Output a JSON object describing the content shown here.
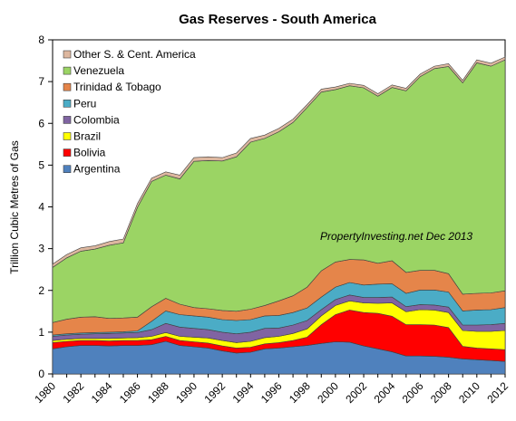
{
  "chart_data": {
    "type": "area",
    "stacked": true,
    "title": "Gas Reserves - South America",
    "ylabel": "Trillion Cubic Metres of Gas",
    "xlabel": "",
    "annotation": "PropertyInvesting.net  Dec 2013",
    "ylim": [
      0,
      8
    ],
    "yticks": [
      "0",
      "1",
      "2",
      "3",
      "4",
      "5",
      "6",
      "7",
      "8"
    ],
    "x": [
      1980,
      1981,
      1982,
      1983,
      1984,
      1985,
      1986,
      1987,
      1988,
      1989,
      1990,
      1991,
      1992,
      1993,
      1994,
      1995,
      1996,
      1997,
      1998,
      1999,
      2000,
      2001,
      2002,
      2003,
      2004,
      2005,
      2006,
      2007,
      2008,
      2009,
      2010,
      2011,
      2012
    ],
    "xticks": [
      "1980",
      "1982",
      "1984",
      "1986",
      "1988",
      "1990",
      "1992",
      "1994",
      "1996",
      "1998",
      "2000",
      "2002",
      "2004",
      "2006",
      "2008",
      "2010",
      "2012"
    ],
    "legend_position": "top-left",
    "series": [
      {
        "name": "Argentina",
        "color": "#4f81bd",
        "values": [
          0.6,
          0.65,
          0.68,
          0.68,
          0.67,
          0.68,
          0.68,
          0.7,
          0.78,
          0.68,
          0.65,
          0.62,
          0.55,
          0.5,
          0.52,
          0.6,
          0.62,
          0.65,
          0.68,
          0.73,
          0.77,
          0.76,
          0.67,
          0.6,
          0.53,
          0.43,
          0.43,
          0.42,
          0.4,
          0.36,
          0.34,
          0.32,
          0.3
        ]
      },
      {
        "name": "Bolivia",
        "color": "#ff0000",
        "values": [
          0.15,
          0.13,
          0.12,
          0.12,
          0.12,
          0.12,
          0.12,
          0.12,
          0.12,
          0.12,
          0.12,
          0.12,
          0.12,
          0.12,
          0.12,
          0.12,
          0.13,
          0.15,
          0.2,
          0.45,
          0.65,
          0.77,
          0.8,
          0.85,
          0.85,
          0.75,
          0.75,
          0.75,
          0.71,
          0.3,
          0.28,
          0.28,
          0.28
        ]
      },
      {
        "name": "Brazil",
        "color": "#ffff00",
        "values": [
          0.05,
          0.05,
          0.05,
          0.05,
          0.06,
          0.06,
          0.07,
          0.08,
          0.09,
          0.1,
          0.11,
          0.12,
          0.13,
          0.13,
          0.14,
          0.15,
          0.15,
          0.17,
          0.2,
          0.21,
          0.22,
          0.22,
          0.23,
          0.24,
          0.32,
          0.31,
          0.36,
          0.36,
          0.36,
          0.38,
          0.4,
          0.42,
          0.46
        ]
      },
      {
        "name": "Colombia",
        "color": "#8064a2",
        "values": [
          0.1,
          0.1,
          0.1,
          0.11,
          0.12,
          0.12,
          0.12,
          0.16,
          0.22,
          0.22,
          0.21,
          0.2,
          0.2,
          0.21,
          0.22,
          0.22,
          0.2,
          0.2,
          0.2,
          0.15,
          0.14,
          0.14,
          0.13,
          0.14,
          0.14,
          0.12,
          0.12,
          0.12,
          0.13,
          0.13,
          0.15,
          0.16,
          0.17
        ]
      },
      {
        "name": "Peru",
        "color": "#4bacc6",
        "values": [
          0.03,
          0.03,
          0.03,
          0.03,
          0.03,
          0.03,
          0.04,
          0.2,
          0.3,
          0.3,
          0.3,
          0.3,
          0.3,
          0.32,
          0.3,
          0.3,
          0.3,
          0.3,
          0.3,
          0.3,
          0.3,
          0.3,
          0.3,
          0.32,
          0.32,
          0.32,
          0.35,
          0.36,
          0.36,
          0.34,
          0.36,
          0.36,
          0.38
        ]
      },
      {
        "name": "Trinidad & Tobago",
        "color": "#e5854a",
        "values": [
          0.3,
          0.35,
          0.38,
          0.38,
          0.33,
          0.33,
          0.33,
          0.35,
          0.3,
          0.25,
          0.2,
          0.2,
          0.22,
          0.22,
          0.25,
          0.25,
          0.35,
          0.4,
          0.5,
          0.63,
          0.6,
          0.55,
          0.6,
          0.5,
          0.55,
          0.5,
          0.47,
          0.47,
          0.44,
          0.4,
          0.4,
          0.4,
          0.4
        ]
      },
      {
        "name": "Venezuela",
        "color": "#9bd464",
        "values": [
          1.32,
          1.47,
          1.58,
          1.62,
          1.75,
          1.8,
          2.63,
          3.0,
          2.95,
          3.0,
          3.5,
          3.55,
          3.58,
          3.7,
          4.0,
          4.0,
          4.05,
          4.15,
          4.3,
          4.28,
          4.13,
          4.16,
          4.12,
          4.0,
          4.15,
          4.35,
          4.64,
          4.83,
          4.96,
          5.06,
          5.52,
          5.43,
          5.53
        ]
      },
      {
        "name": "Other S. & Cent. America",
        "color": "#ddb79f",
        "values": [
          0.08,
          0.08,
          0.08,
          0.08,
          0.09,
          0.09,
          0.09,
          0.08,
          0.08,
          0.09,
          0.09,
          0.09,
          0.08,
          0.09,
          0.09,
          0.08,
          0.08,
          0.08,
          0.07,
          0.07,
          0.06,
          0.06,
          0.06,
          0.06,
          0.06,
          0.06,
          0.06,
          0.06,
          0.07,
          0.06,
          0.07,
          0.07,
          0.07
        ]
      }
    ]
  }
}
